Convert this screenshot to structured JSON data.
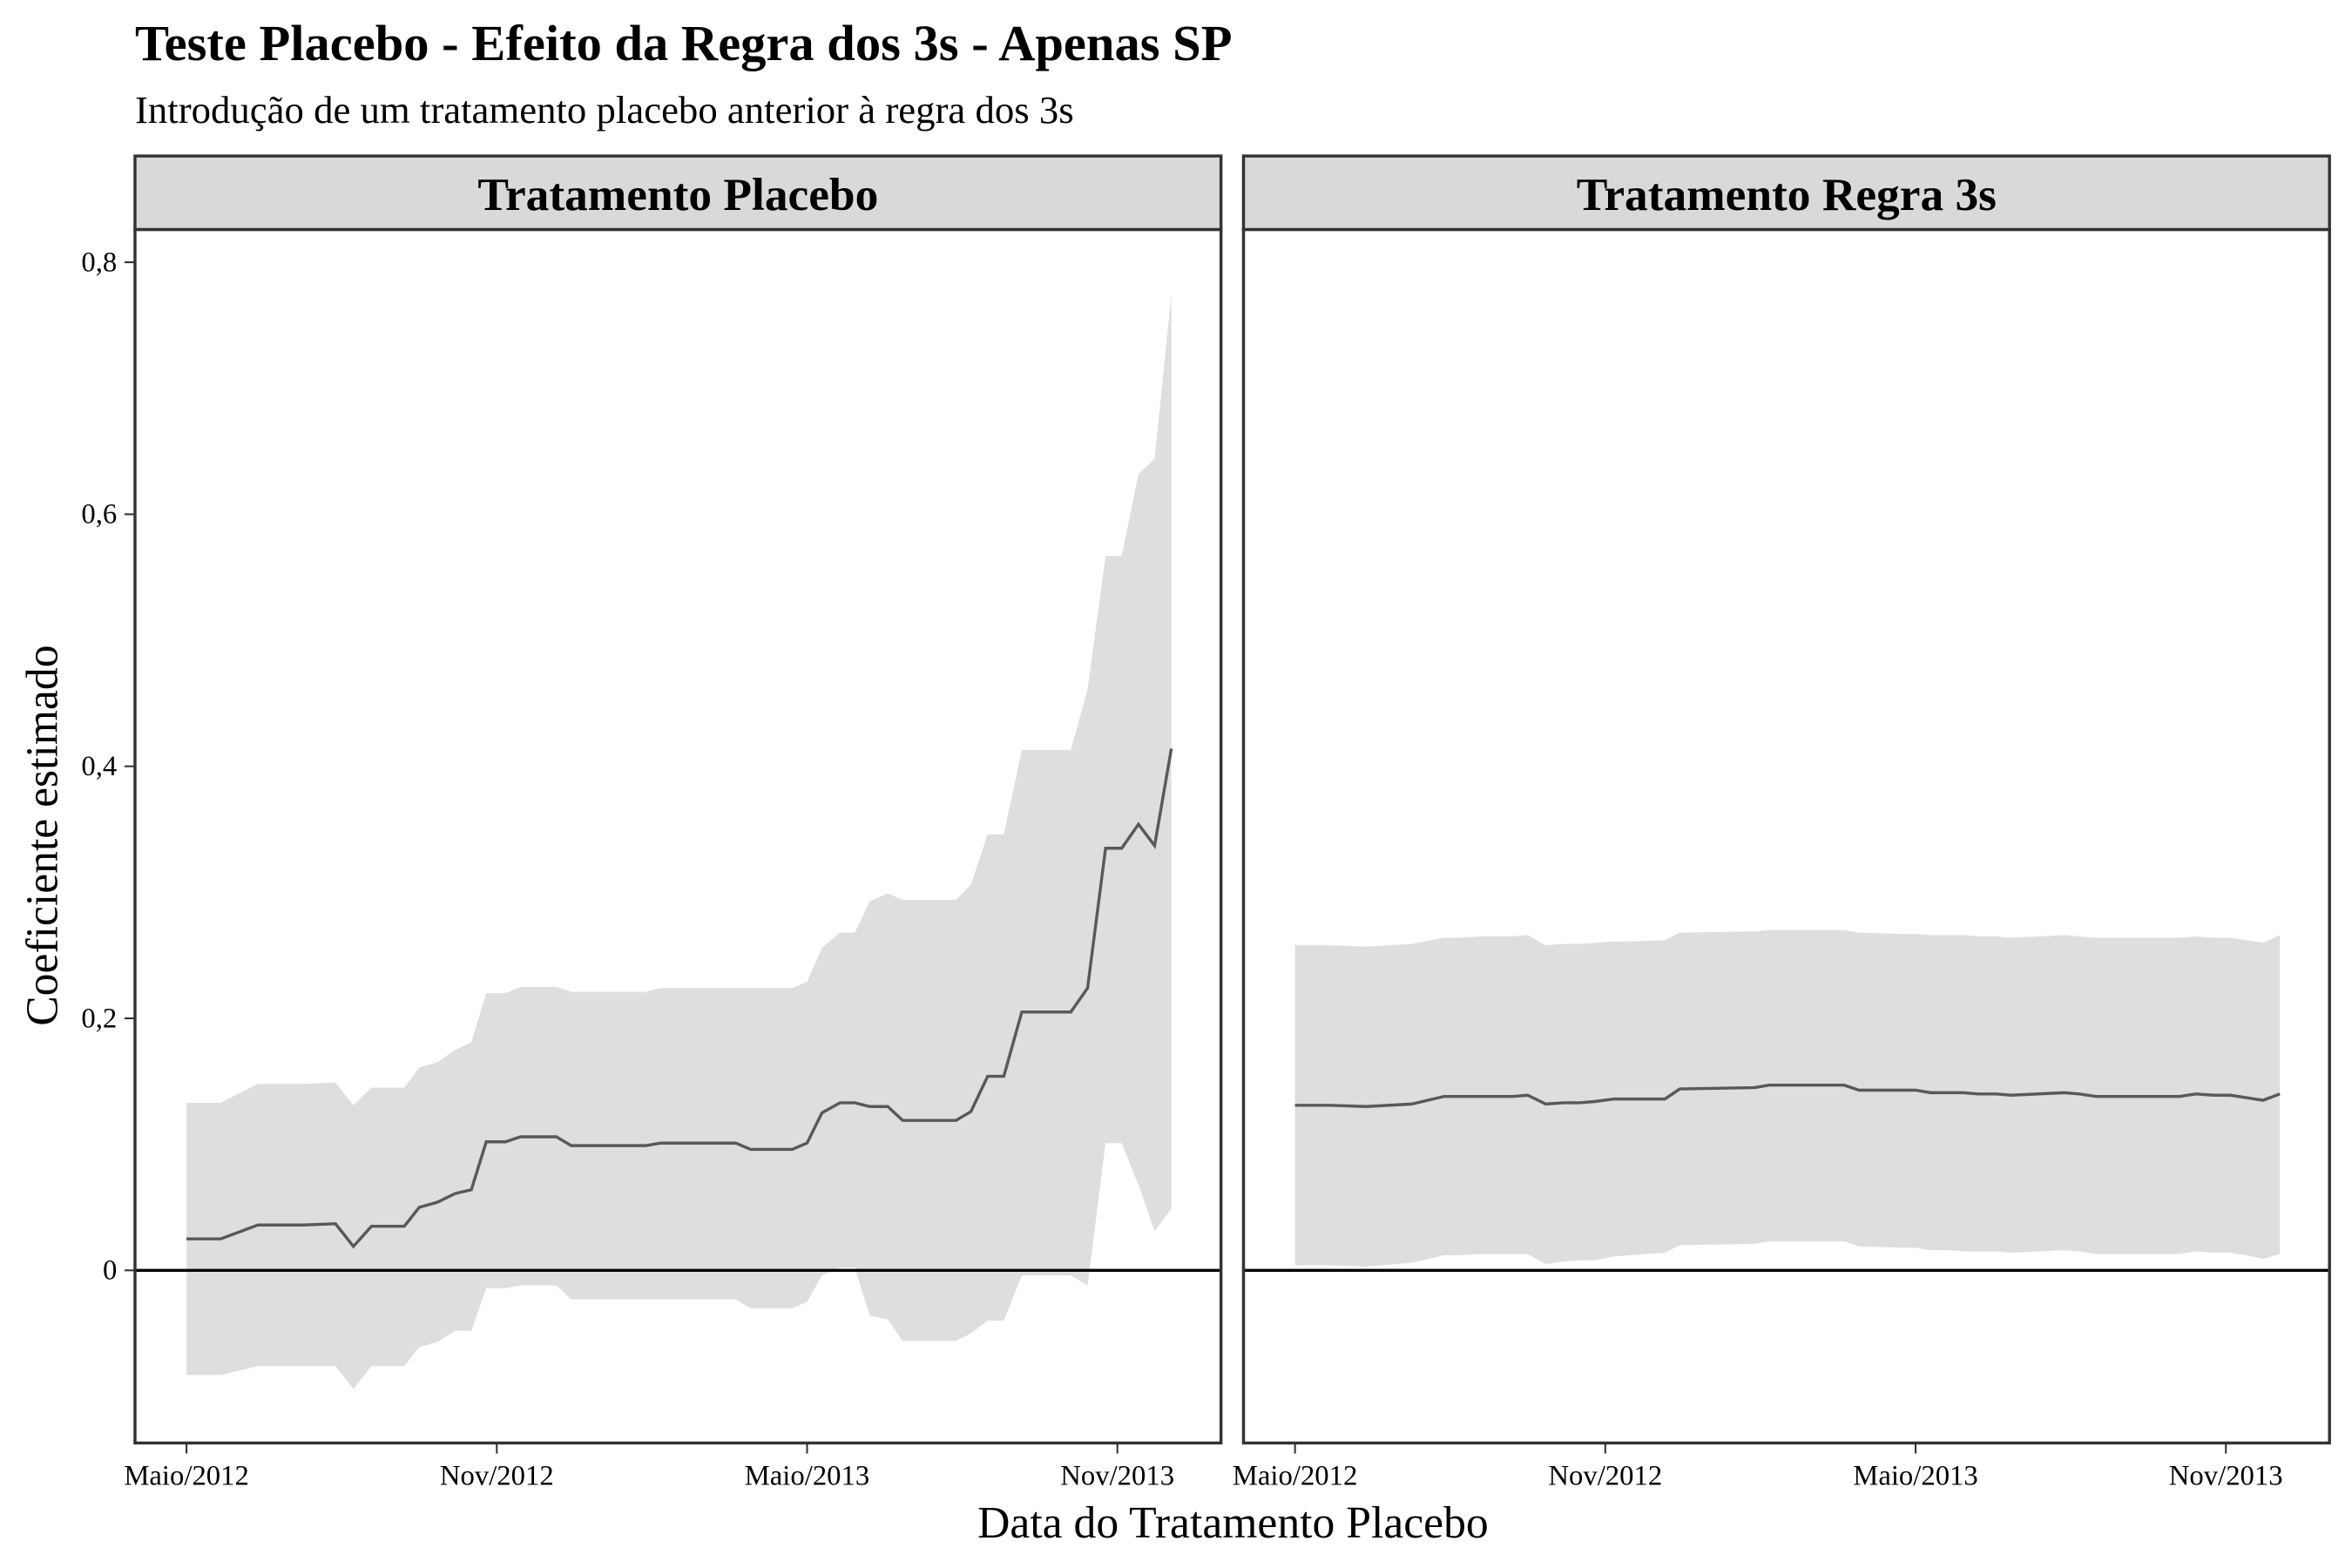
{
  "chart_data": {
    "type": "line",
    "title": "Teste Placebo - Efeito da Regra dos 3s - Apenas SP",
    "subtitle": "Introdução de um tratamento placebo anterior à regra dos 3s",
    "xlabel": "Data do Tratamento Placebo",
    "ylabel": "Coeficiente estimado",
    "xlim": [
      2012.25,
      2014.0
    ],
    "ylim": [
      -0.137,
      0.826
    ],
    "xticks": [
      {
        "value": 2012.333,
        "label": "Maio/2012"
      },
      {
        "value": 2012.833,
        "label": "Nov/2012"
      },
      {
        "value": 2013.333,
        "label": "Maio/2013"
      },
      {
        "value": 2013.833,
        "label": "Nov/2013"
      }
    ],
    "yticks": [
      0,
      {
        "value": 0.2,
        "label": "0,2"
      },
      {
        "value": 0.4,
        "label": "0,4"
      },
      {
        "value": 0.6,
        "label": "0,6"
      },
      {
        "value": 0.8,
        "label": "0,8"
      }
    ],
    "hline": 0,
    "line_color": "#595959",
    "band_color": "#dedede",
    "facets": [
      {
        "label": "Tratamento Placebo",
        "x": [
          2012.333,
          2012.388,
          2012.448,
          2012.521,
          2012.573,
          2012.602,
          2012.631,
          2012.684,
          2012.708,
          2012.737,
          2012.766,
          2012.792,
          2012.816,
          2012.847,
          2012.871,
          2012.929,
          2012.953,
          2013.073,
          2013.097,
          2013.218,
          2013.242,
          2013.309,
          2013.333,
          2013.357,
          2013.386,
          2013.41,
          2013.434,
          2013.463,
          2013.487,
          2013.573,
          2013.597,
          2013.624,
          2013.65,
          2013.679,
          2013.758,
          2013.785,
          2013.814,
          2013.84,
          2013.867,
          2013.893,
          2013.92
        ],
        "estimate": [
          0.025,
          0.025,
          0.036,
          0.036,
          0.037,
          0.019,
          0.035,
          0.035,
          0.05,
          0.054,
          0.061,
          0.064,
          0.102,
          0.102,
          0.106,
          0.106,
          0.099,
          0.099,
          0.101,
          0.101,
          0.096,
          0.096,
          0.101,
          0.125,
          0.133,
          0.133,
          0.13,
          0.13,
          0.119,
          0.119,
          0.126,
          0.154,
          0.154,
          0.205,
          0.205,
          0.224,
          0.335,
          0.335,
          0.354,
          0.337,
          0.414
        ],
        "lower": [
          -0.083,
          -0.083,
          -0.076,
          -0.076,
          -0.076,
          -0.094,
          -0.076,
          -0.076,
          -0.061,
          -0.057,
          -0.048,
          -0.048,
          -0.014,
          -0.014,
          -0.012,
          -0.012,
          -0.023,
          -0.023,
          -0.023,
          -0.023,
          -0.03,
          -0.03,
          -0.025,
          -0.004,
          0.002,
          0.002,
          -0.036,
          -0.039,
          -0.056,
          -0.056,
          -0.05,
          -0.04,
          -0.04,
          -0.004,
          -0.004,
          -0.012,
          0.101,
          0.101,
          0.068,
          0.031,
          0.049
        ],
        "upper": [
          0.133,
          0.133,
          0.148,
          0.148,
          0.149,
          0.131,
          0.145,
          0.145,
          0.161,
          0.165,
          0.175,
          0.181,
          0.22,
          0.22,
          0.225,
          0.225,
          0.221,
          0.221,
          0.224,
          0.224,
          0.224,
          0.224,
          0.229,
          0.256,
          0.268,
          0.268,
          0.293,
          0.299,
          0.294,
          0.294,
          0.306,
          0.346,
          0.346,
          0.413,
          0.413,
          0.461,
          0.567,
          0.567,
          0.632,
          0.644,
          0.774
        ]
      },
      {
        "label": "Tratamento Regra 3s",
        "x": [
          2012.333,
          2012.388,
          2012.448,
          2012.521,
          2012.573,
          2012.602,
          2012.631,
          2012.684,
          2012.708,
          2012.737,
          2012.766,
          2012.792,
          2012.816,
          2012.847,
          2012.871,
          2012.929,
          2012.953,
          2013.073,
          2013.097,
          2013.218,
          2013.242,
          2013.309,
          2013.333,
          2013.357,
          2013.386,
          2013.41,
          2013.434,
          2013.463,
          2013.487,
          2013.573,
          2013.597,
          2013.624,
          2013.65,
          2013.679,
          2013.758,
          2013.785,
          2013.814,
          2013.84,
          2013.867,
          2013.893,
          2013.92
        ],
        "estimate": [
          0.131,
          0.131,
          0.13,
          0.132,
          0.138,
          0.138,
          0.138,
          0.138,
          0.139,
          0.132,
          0.133,
          0.133,
          0.134,
          0.136,
          0.136,
          0.136,
          0.144,
          0.145,
          0.147,
          0.147,
          0.143,
          0.143,
          0.143,
          0.141,
          0.141,
          0.141,
          0.14,
          0.14,
          0.139,
          0.141,
          0.14,
          0.138,
          0.138,
          0.138,
          0.138,
          0.14,
          0.139,
          0.139,
          0.137,
          0.135,
          0.14
        ],
        "lower": [
          0.004,
          0.004,
          0.003,
          0.006,
          0.012,
          0.012,
          0.013,
          0.013,
          0.013,
          0.005,
          0.007,
          0.008,
          0.008,
          0.011,
          0.012,
          0.014,
          0.02,
          0.021,
          0.023,
          0.023,
          0.019,
          0.018,
          0.018,
          0.016,
          0.016,
          0.015,
          0.015,
          0.015,
          0.014,
          0.016,
          0.015,
          0.013,
          0.013,
          0.013,
          0.013,
          0.015,
          0.014,
          0.014,
          0.012,
          0.009,
          0.013
        ],
        "upper": [
          0.258,
          0.258,
          0.257,
          0.259,
          0.264,
          0.264,
          0.265,
          0.265,
          0.266,
          0.258,
          0.259,
          0.259,
          0.26,
          0.261,
          0.261,
          0.262,
          0.268,
          0.269,
          0.27,
          0.27,
          0.268,
          0.267,
          0.267,
          0.266,
          0.266,
          0.266,
          0.265,
          0.265,
          0.264,
          0.266,
          0.265,
          0.264,
          0.264,
          0.264,
          0.264,
          0.265,
          0.264,
          0.264,
          0.262,
          0.26,
          0.266
        ]
      }
    ]
  }
}
